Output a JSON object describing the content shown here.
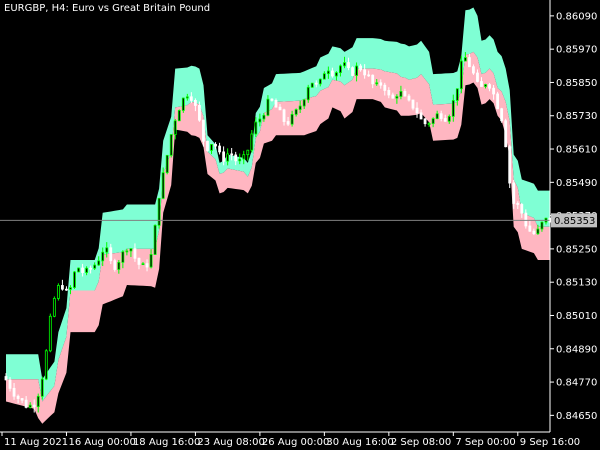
{
  "title": "EURGBP, H4:  Euro vs Great Britain Pound",
  "chart_data": {
    "type": "candlestick",
    "symbol": "EURGBP",
    "timeframe": "H4",
    "instrument": "Euro vs Great Britain Pound",
    "ylim": [
      0.8459,
      0.8614
    ],
    "y_ticks": [
      0.8609,
      0.8597,
      0.8585,
      0.8573,
      0.8561,
      0.8549,
      0.8537,
      0.8525,
      0.8513,
      0.8501,
      0.8489,
      0.8477,
      0.8465
    ],
    "y_tick_labels": [
      "0.86090",
      "0.85970",
      "0.85850",
      "0.85730",
      "0.85610",
      "0.85490",
      "0.85370",
      "0.85250",
      "0.85130",
      "0.85010",
      "0.84890",
      "0.84770",
      "0.84650"
    ],
    "current_price": 0.85353,
    "current_price_label": "0.85353",
    "x_tick_labels": [
      "11 Aug 2021",
      "16 Aug 00:00",
      "18 Aug 16:00",
      "23 Aug 08:00",
      "26 Aug 00:00",
      "30 Aug 16:00",
      "2 Sep 08:00",
      "7 Sep 00:00",
      "9 Sep 16:00"
    ],
    "x_tick_bar_index": [
      0,
      16,
      32,
      48,
      64,
      80,
      96,
      112,
      128
    ],
    "bar_count": 136,
    "grid": false,
    "colors": {
      "background": "#000000",
      "upper_band_fill": "#7fffd4",
      "lower_band_fill": "#ffb6c1",
      "candle_up": "#00ff00",
      "candle_down": "#ffffff",
      "price_line": "#808080",
      "axis_text": "#ffffff",
      "axis_line": "#ffffff"
    },
    "upper_band": [
      [
        0,
        0.8487
      ],
      [
        8,
        0.8487
      ],
      [
        9,
        0.8478
      ],
      [
        13,
        0.8495
      ],
      [
        16,
        0.8521
      ],
      [
        22,
        0.8521
      ],
      [
        24,
        0.8538
      ],
      [
        30,
        0.8541
      ],
      [
        37,
        0.8541
      ],
      [
        39,
        0.8564
      ],
      [
        42,
        0.859
      ],
      [
        46,
        0.8591
      ],
      [
        48,
        0.859
      ],
      [
        50,
        0.8566
      ],
      [
        53,
        0.8556
      ],
      [
        55,
        0.8559
      ],
      [
        60,
        0.8556
      ],
      [
        62,
        0.8574
      ],
      [
        64,
        0.8583
      ],
      [
        67,
        0.8588
      ],
      [
        74,
        0.8589
      ],
      [
        78,
        0.8594
      ],
      [
        81,
        0.8598
      ],
      [
        84,
        0.8596
      ],
      [
        87,
        0.8601
      ],
      [
        91,
        0.8601
      ],
      [
        94,
        0.86
      ],
      [
        98,
        0.8599
      ],
      [
        100,
        0.8598
      ],
      [
        103,
        0.86
      ],
      [
        106,
        0.8588
      ],
      [
        112,
        0.8589
      ],
      [
        114,
        0.8611
      ],
      [
        116,
        0.8612
      ],
      [
        118,
        0.86
      ],
      [
        120,
        0.8602
      ],
      [
        122,
        0.8596
      ],
      [
        124,
        0.859
      ],
      [
        126,
        0.8559
      ],
      [
        128,
        0.855
      ],
      [
        132,
        0.8546
      ],
      [
        136,
        0.8546
      ]
    ],
    "mid_line": [
      [
        0,
        0.8478
      ],
      [
        8,
        0.8478
      ],
      [
        9,
        0.847
      ],
      [
        13,
        0.8485
      ],
      [
        16,
        0.851
      ],
      [
        22,
        0.851
      ],
      [
        24,
        0.8523
      ],
      [
        30,
        0.8525
      ],
      [
        37,
        0.8525
      ],
      [
        39,
        0.8552
      ],
      [
        42,
        0.8576
      ],
      [
        46,
        0.8578
      ],
      [
        48,
        0.8577
      ],
      [
        50,
        0.856
      ],
      [
        53,
        0.8552
      ],
      [
        55,
        0.8554
      ],
      [
        60,
        0.8551
      ],
      [
        62,
        0.8565
      ],
      [
        64,
        0.8574
      ],
      [
        67,
        0.8578
      ],
      [
        74,
        0.8579
      ],
      [
        78,
        0.8582
      ],
      [
        81,
        0.8586
      ],
      [
        84,
        0.8584
      ],
      [
        87,
        0.859
      ],
      [
        91,
        0.859
      ],
      [
        94,
        0.8589
      ],
      [
        98,
        0.8587
      ],
      [
        100,
        0.8586
      ],
      [
        103,
        0.8588
      ],
      [
        106,
        0.8577
      ],
      [
        112,
        0.8578
      ],
      [
        114,
        0.8595
      ],
      [
        116,
        0.8596
      ],
      [
        118,
        0.8588
      ],
      [
        120,
        0.859
      ],
      [
        122,
        0.8583
      ],
      [
        124,
        0.8578
      ],
      [
        126,
        0.855
      ],
      [
        128,
        0.8538
      ],
      [
        132,
        0.8533
      ],
      [
        136,
        0.8533
      ]
    ],
    "lower_band": [
      [
        0,
        0.847
      ],
      [
        8,
        0.8464
      ],
      [
        9,
        0.8462
      ],
      [
        13,
        0.8473
      ],
      [
        16,
        0.8495
      ],
      [
        22,
        0.8495
      ],
      [
        24,
        0.8505
      ],
      [
        30,
        0.8512
      ],
      [
        37,
        0.8511
      ],
      [
        39,
        0.8538
      ],
      [
        42,
        0.8568
      ],
      [
        46,
        0.8566
      ],
      [
        48,
        0.8565
      ],
      [
        50,
        0.8552
      ],
      [
        53,
        0.8545
      ],
      [
        55,
        0.8547
      ],
      [
        60,
        0.8545
      ],
      [
        62,
        0.8556
      ],
      [
        64,
        0.8563
      ],
      [
        67,
        0.8566
      ],
      [
        74,
        0.8566
      ],
      [
        78,
        0.857
      ],
      [
        81,
        0.8576
      ],
      [
        84,
        0.8572
      ],
      [
        87,
        0.8579
      ],
      [
        91,
        0.8579
      ],
      [
        94,
        0.8576
      ],
      [
        98,
        0.8573
      ],
      [
        100,
        0.8573
      ],
      [
        103,
        0.8574
      ],
      [
        106,
        0.8564
      ],
      [
        112,
        0.8565
      ],
      [
        114,
        0.8584
      ],
      [
        116,
        0.8585
      ],
      [
        118,
        0.8577
      ],
      [
        120,
        0.8579
      ],
      [
        122,
        0.8573
      ],
      [
        124,
        0.8566
      ],
      [
        126,
        0.8533
      ],
      [
        128,
        0.8525
      ],
      [
        132,
        0.8521
      ],
      [
        136,
        0.8521
      ]
    ],
    "price_path": [
      [
        0,
        0.8479
      ],
      [
        3,
        0.8472
      ],
      [
        6,
        0.8468
      ],
      [
        8,
        0.847
      ],
      [
        10,
        0.8482
      ],
      [
        12,
        0.8505
      ],
      [
        14,
        0.8513
      ],
      [
        16,
        0.8508
      ],
      [
        18,
        0.8519
      ],
      [
        20,
        0.8516
      ],
      [
        23,
        0.852
      ],
      [
        25,
        0.8526
      ],
      [
        27,
        0.8518
      ],
      [
        29,
        0.8522
      ],
      [
        31,
        0.8527
      ],
      [
        33,
        0.852
      ],
      [
        35,
        0.8518
      ],
      [
        37,
        0.8524
      ],
      [
        38,
        0.8541
      ],
      [
        40,
        0.8555
      ],
      [
        42,
        0.857
      ],
      [
        44,
        0.8578
      ],
      [
        46,
        0.8582
      ],
      [
        48,
        0.8574
      ],
      [
        50,
        0.8561
      ],
      [
        52,
        0.8564
      ],
      [
        54,
        0.8557
      ],
      [
        56,
        0.856
      ],
      [
        58,
        0.8556
      ],
      [
        60,
        0.8558
      ],
      [
        62,
        0.8569
      ],
      [
        64,
        0.8573
      ],
      [
        66,
        0.8579
      ],
      [
        68,
        0.8575
      ],
      [
        70,
        0.857
      ],
      [
        72,
        0.8573
      ],
      [
        74,
        0.8578
      ],
      [
        76,
        0.8586
      ],
      [
        78,
        0.8583
      ],
      [
        80,
        0.8591
      ],
      [
        82,
        0.8588
      ],
      [
        84,
        0.8592
      ],
      [
        86,
        0.8588
      ],
      [
        88,
        0.8591
      ],
      [
        90,
        0.8588
      ],
      [
        92,
        0.8583
      ],
      [
        94,
        0.8585
      ],
      [
        96,
        0.8578
      ],
      [
        98,
        0.8582
      ],
      [
        100,
        0.8578
      ],
      [
        102,
        0.8576
      ],
      [
        104,
        0.857
      ],
      [
        106,
        0.8571
      ],
      [
        108,
        0.8574
      ],
      [
        110,
        0.8572
      ],
      [
        112,
        0.858
      ],
      [
        114,
        0.8595
      ],
      [
        116,
        0.859
      ],
      [
        118,
        0.8582
      ],
      [
        120,
        0.8586
      ],
      [
        122,
        0.8579
      ],
      [
        124,
        0.857
      ],
      [
        126,
        0.8542
      ],
      [
        128,
        0.854
      ],
      [
        130,
        0.8532
      ],
      [
        132,
        0.853
      ],
      [
        134,
        0.85353
      ],
      [
        136,
        0.85353
      ]
    ]
  }
}
